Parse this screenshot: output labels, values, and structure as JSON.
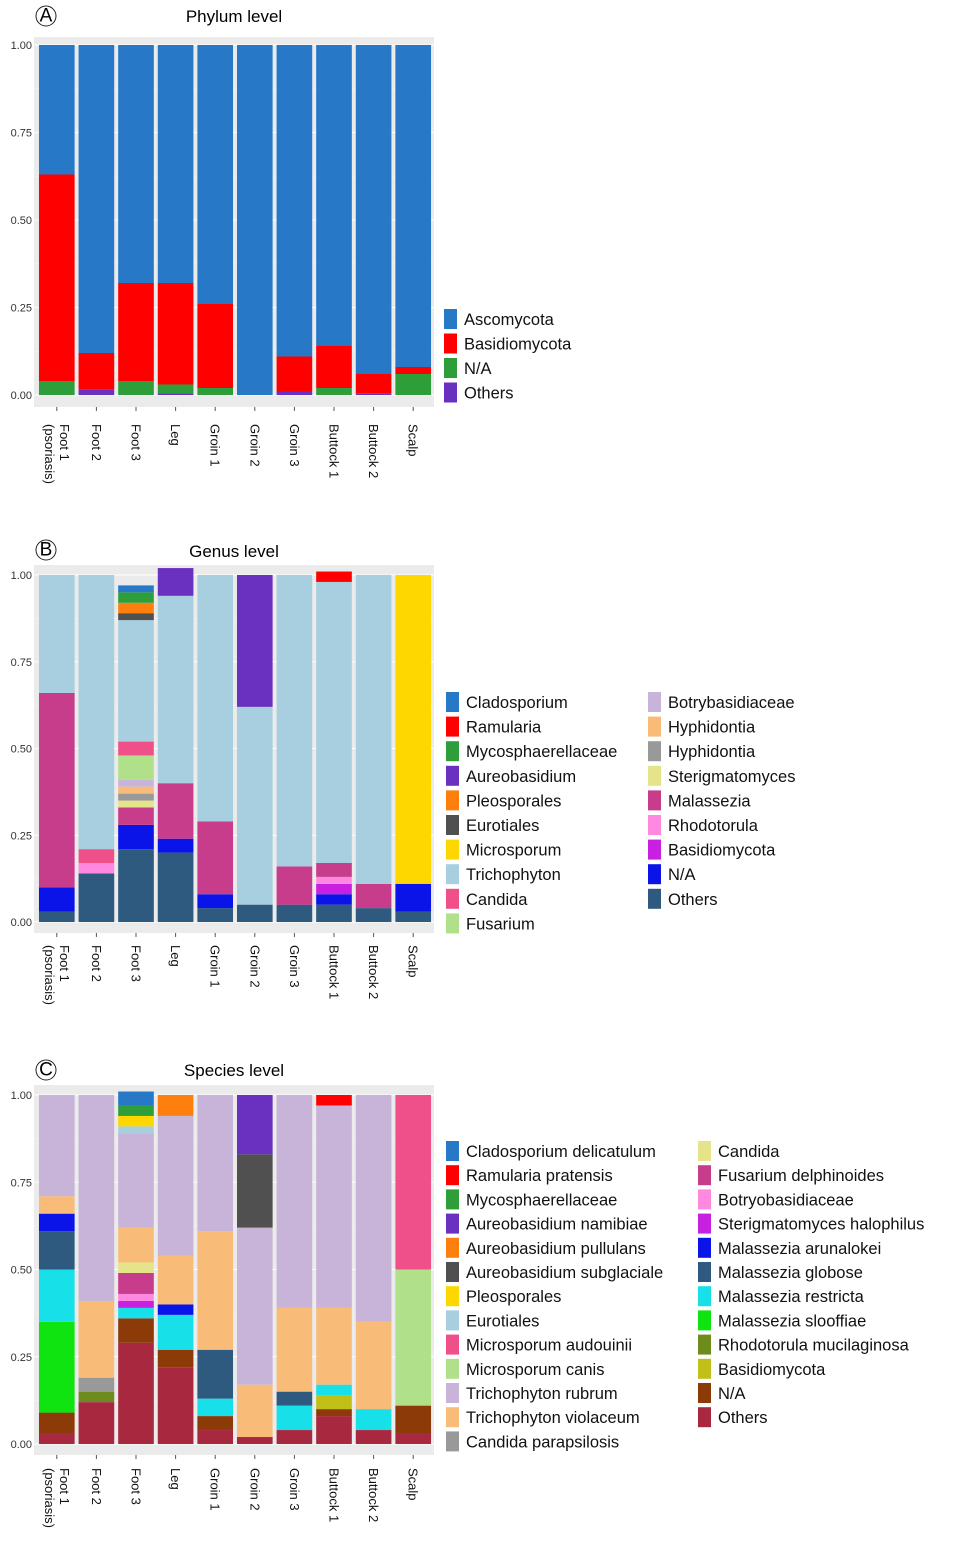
{
  "chart_data": [
    {
      "panel": "A",
      "type": "bar",
      "stacked": true,
      "title": "Phylum level",
      "categories": [
        "Foot 1\n(psoriasis)",
        "Foot 2",
        "Foot 3",
        "Leg",
        "Groin 1",
        "Groin 2",
        "Groin 3",
        "Buttock 1",
        "Buttock 2",
        "Scalp"
      ],
      "ylim": [
        0,
        1
      ],
      "yticks": [
        "0.00",
        "0.25",
        "0.50",
        "0.75",
        "1.00"
      ],
      "grid": true,
      "legend_position": "right",
      "series": [
        {
          "name": "Ascomycota",
          "color": "#2878c8",
          "values": [
            0.37,
            0.88,
            0.68,
            0.68,
            0.74,
            1.0,
            0.89,
            0.86,
            0.94,
            0.92
          ]
        },
        {
          "name": "Basidiomycota",
          "color": "#ff0000",
          "values": [
            0.59,
            0.105,
            0.28,
            0.29,
            0.24,
            0.0,
            0.1,
            0.12,
            0.055,
            0.02
          ]
        },
        {
          "name": "N/A",
          "color": "#2e9e3a",
          "values": [
            0.04,
            0.0,
            0.04,
            0.025,
            0.02,
            0.0,
            0.0,
            0.02,
            0.0,
            0.06
          ]
        },
        {
          "name": "Others",
          "color": "#6a30c0",
          "values": [
            0.0,
            0.015,
            0.0,
            0.005,
            0.0,
            0.0,
            0.01,
            0.0,
            0.005,
            0.0
          ]
        }
      ]
    },
    {
      "panel": "B",
      "type": "bar",
      "stacked": true,
      "title": "Genus level",
      "categories": [
        "Foot 1\n(psoriasis)",
        "Foot 2",
        "Foot 3",
        "Leg",
        "Groin 1",
        "Groin 2",
        "Groin 3",
        "Buttock 1",
        "Buttock 2",
        "Scalp"
      ],
      "ylim": [
        0,
        1
      ],
      "yticks": [
        "0.00",
        "0.25",
        "0.50",
        "0.75",
        "1.00"
      ],
      "grid": true,
      "legend_position": "right",
      "series": [
        {
          "name": "Cladosporium",
          "color": "#2878c8",
          "values": [
            0,
            0,
            0.02,
            0,
            0,
            0,
            0,
            0,
            0,
            0
          ]
        },
        {
          "name": "Ramularia",
          "color": "#ff0000",
          "values": [
            0,
            0,
            0,
            0,
            0,
            0,
            0,
            0.03,
            0,
            0
          ]
        },
        {
          "name": "Mycosphaerellaceae",
          "color": "#2e9e3a",
          "values": [
            0,
            0,
            0.03,
            0,
            0,
            0,
            0,
            0,
            0,
            0
          ]
        },
        {
          "name": "Aureobasidium",
          "color": "#6a30c0",
          "values": [
            0,
            0,
            0,
            0.08,
            0,
            0.38,
            0,
            0,
            0,
            0
          ]
        },
        {
          "name": "Pleosporales",
          "color": "#ff7f0e",
          "values": [
            0,
            0,
            0.03,
            0,
            0,
            0,
            0,
            0,
            0,
            0
          ]
        },
        {
          "name": "Eurotiales",
          "color": "#505050",
          "values": [
            0,
            0,
            0.02,
            0,
            0,
            0,
            0,
            0,
            0,
            0
          ]
        },
        {
          "name": "Microsporum",
          "color": "#ffd700",
          "values": [
            0,
            0,
            0,
            0,
            0,
            0,
            0,
            0,
            0,
            0.89
          ]
        },
        {
          "name": "Trichophyton",
          "color": "#a8cfe0",
          "values": [
            0.34,
            0.79,
            0.35,
            0.54,
            0.71,
            0.57,
            0.84,
            0.81,
            0.89,
            0
          ]
        },
        {
          "name": "Candida",
          "color": "#f0508a",
          "values": [
            0,
            0.04,
            0.04,
            0,
            0,
            0,
            0,
            0,
            0,
            0
          ]
        },
        {
          "name": "Fusarium",
          "color": "#b0e08a",
          "values": [
            0,
            0,
            0.07,
            0,
            0,
            0,
            0,
            0,
            0,
            0
          ]
        },
        {
          "name": "Botrybasidiaceae",
          "color": "#c8b4d8",
          "values": [
            0,
            0,
            0.02,
            0,
            0,
            0,
            0,
            0,
            0,
            0
          ]
        },
        {
          "name": "Hyphidontia",
          "color": "#f8bc78",
          "values": [
            0,
            0,
            0.02,
            0,
            0,
            0,
            0,
            0,
            0,
            0
          ]
        },
        {
          "name": "Hyphidontia",
          "color": "#999999",
          "values": [
            0,
            0,
            0.02,
            0,
            0,
            0,
            0,
            0,
            0,
            0
          ]
        },
        {
          "name": "Sterigmatomyces",
          "color": "#e6e48a",
          "values": [
            0,
            0,
            0.02,
            0,
            0,
            0,
            0,
            0,
            0,
            0
          ]
        },
        {
          "name": "Malassezia",
          "color": "#c83c8c",
          "values": [
            0.56,
            0,
            0.05,
            0.16,
            0.21,
            0,
            0.11,
            0.04,
            0.07,
            0
          ]
        },
        {
          "name": "Rhodotorula",
          "color": "#ff88e0",
          "values": [
            0,
            0.03,
            0,
            0,
            0,
            0,
            0,
            0.02,
            0,
            0
          ]
        },
        {
          "name": "Basidiomycota",
          "color": "#c820e0",
          "values": [
            0,
            0,
            0,
            0,
            0,
            0,
            0,
            0.03,
            0,
            0
          ]
        },
        {
          "name": "N/A",
          "color": "#0a14e8",
          "values": [
            0.07,
            0,
            0.07,
            0.04,
            0.04,
            0,
            0,
            0.03,
            0,
            0.08
          ]
        },
        {
          "name": "Others",
          "color": "#2e5a80",
          "values": [
            0.03,
            0.14,
            0.21,
            0.2,
            0.04,
            0.05,
            0.05,
            0.05,
            0.04,
            0.03
          ]
        }
      ]
    },
    {
      "panel": "C",
      "type": "bar",
      "stacked": true,
      "title": "Species level",
      "categories": [
        "Foot 1\n(psoriasis)",
        "Foot 2",
        "Foot 3",
        "Leg",
        "Groin 1",
        "Groin 2",
        "Groin 3",
        "Buttock 1",
        "Buttock 2",
        "Scalp"
      ],
      "ylim": [
        0,
        1
      ],
      "yticks": [
        "0.00",
        "0.25",
        "0.50",
        "0.75",
        "1.00"
      ],
      "grid": true,
      "legend_position": "right",
      "series": [
        {
          "name": "Cladosporium delicatulum",
          "color": "#2878c8",
          "values": [
            0,
            0,
            0.04,
            0,
            0,
            0,
            0,
            0,
            0,
            0
          ]
        },
        {
          "name": "Ramularia pratensis",
          "color": "#ff0000",
          "values": [
            0,
            0,
            0,
            0,
            0,
            0,
            0,
            0.03,
            0,
            0
          ]
        },
        {
          "name": "Mycosphaerellaceae",
          "color": "#2e9e3a",
          "values": [
            0,
            0,
            0.03,
            0,
            0,
            0,
            0,
            0,
            0,
            0
          ]
        },
        {
          "name": "Aureobasidium namibiae",
          "color": "#6a30c0",
          "values": [
            0,
            0,
            0,
            0,
            0,
            0.17,
            0,
            0,
            0,
            0
          ]
        },
        {
          "name": "Aureobasidium pullulans",
          "color": "#ff7f0e",
          "values": [
            0,
            0,
            0,
            0.06,
            0,
            0,
            0,
            0,
            0,
            0
          ]
        },
        {
          "name": "Aureobasidium subglaciale",
          "color": "#505050",
          "values": [
            0,
            0,
            0,
            0,
            0,
            0.21,
            0,
            0,
            0,
            0
          ]
        },
        {
          "name": "Pleosporales",
          "color": "#ffd700",
          "values": [
            0,
            0,
            0.03,
            0,
            0,
            0,
            0,
            0,
            0,
            0
          ]
        },
        {
          "name": "Eurotiales",
          "color": "#a8cfe0",
          "values": [
            0,
            0,
            0.02,
            0,
            0,
            0,
            0,
            0,
            0,
            0
          ]
        },
        {
          "name": "Microsporum audouinii",
          "color": "#f0508a",
          "values": [
            0,
            0,
            0,
            0,
            0,
            0,
            0,
            0,
            0,
            0.5
          ]
        },
        {
          "name": "Microsporum canis",
          "color": "#b0e08a",
          "values": [
            0,
            0,
            0,
            0,
            0,
            0,
            0,
            0,
            0,
            0.39
          ]
        },
        {
          "name": "Trichophyton rubrum",
          "color": "#c8b4d8",
          "values": [
            0.29,
            0.59,
            0.27,
            0.4,
            0.39,
            0.45,
            0.61,
            0.58,
            0.65,
            0
          ]
        },
        {
          "name": "Trichophyton violaceum",
          "color": "#f8bc78",
          "values": [
            0.05,
            0.22,
            0.1,
            0.14,
            0.34,
            0.15,
            0.24,
            0.22,
            0.25,
            0
          ]
        },
        {
          "name": "Candida parapsilosis",
          "color": "#999999",
          "values": [
            0,
            0.04,
            0,
            0,
            0,
            0,
            0,
            0,
            0,
            0
          ]
        },
        {
          "name": "Candida",
          "color": "#e6e48a",
          "values": [
            0,
            0,
            0.03,
            0,
            0,
            0,
            0,
            0,
            0,
            0
          ]
        },
        {
          "name": "Fusarium delphinoides",
          "color": "#c83c8c",
          "values": [
            0,
            0,
            0.06,
            0,
            0,
            0,
            0,
            0,
            0,
            0
          ]
        },
        {
          "name": "Botryobasidiaceae",
          "color": "#ff88e0",
          "values": [
            0,
            0,
            0.02,
            0,
            0,
            0,
            0,
            0,
            0,
            0
          ]
        },
        {
          "name": "Sterigmatomyces halophilus",
          "color": "#c820e0",
          "values": [
            0,
            0,
            0.02,
            0,
            0,
            0,
            0,
            0,
            0,
            0
          ]
        },
        {
          "name": "Malassezia arunalokei",
          "color": "#0a14e8",
          "values": [
            0.05,
            0,
            0,
            0.03,
            0,
            0,
            0,
            0,
            0,
            0
          ]
        },
        {
          "name": "Malassezia globose",
          "color": "#2e5a80",
          "values": [
            0.11,
            0,
            0,
            0,
            0.14,
            0,
            0.04,
            0,
            0,
            0
          ]
        },
        {
          "name": "Malassezia restricta",
          "color": "#18e0e8",
          "values": [
            0.15,
            0,
            0.03,
            0.1,
            0.05,
            0,
            0.07,
            0.03,
            0.06,
            0
          ]
        },
        {
          "name": "Malassezia slooffiae",
          "color": "#10e410",
          "values": [
            0.26,
            0,
            0,
            0,
            0,
            0,
            0,
            0,
            0,
            0
          ]
        },
        {
          "name": "Rhodotorula mucilaginosa",
          "color": "#6e8c1e",
          "values": [
            0,
            0.03,
            0,
            0,
            0,
            0,
            0,
            0,
            0,
            0
          ]
        },
        {
          "name": "Basidiomycota",
          "color": "#c0c018",
          "values": [
            0,
            0,
            0,
            0,
            0,
            0,
            0,
            0.04,
            0,
            0
          ]
        },
        {
          "name": "N/A",
          "color": "#8b3a08",
          "values": [
            0.06,
            0,
            0.07,
            0.05,
            0.04,
            0,
            0,
            0.02,
            0,
            0.08
          ]
        },
        {
          "name": "Others",
          "color": "#a82840",
          "values": [
            0.03,
            0.12,
            0.29,
            0.22,
            0.04,
            0.02,
            0.04,
            0.08,
            0.04,
            0.03
          ]
        }
      ]
    }
  ]
}
